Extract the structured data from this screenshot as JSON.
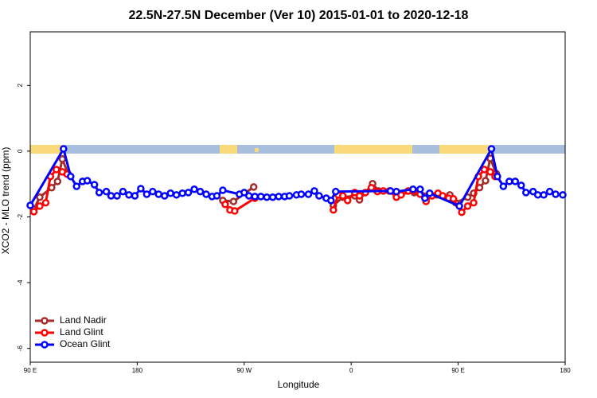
{
  "chart_data": {
    "type": "line",
    "title": "22.5N-27.5N December (Ver 10)   2015-01-01 to 2020-12-18",
    "x_label": "Longitude",
    "y_label": "XCO2 - MLO trend (ppm)",
    "xlim": [
      90,
      540
    ],
    "xticks": [
      {
        "value": 90,
        "label": "90 E"
      },
      {
        "value": 180,
        "label": "180"
      },
      {
        "value": 270,
        "label": "90 W"
      },
      {
        "value": 360,
        "label": "0"
      },
      {
        "value": 450,
        "label": "90 E"
      },
      {
        "value": 540,
        "label": "180"
      }
    ],
    "ylim": [
      -6.42,
      3.63
    ],
    "yticks": [
      -6,
      -4,
      -2,
      0,
      2
    ],
    "legend": "bottom-left",
    "series": [
      {
        "name": "Land Nadir",
        "color": "#a52a2a",
        "x": [
          93,
          98,
          108,
          113,
          117,
          122,
          null,
          252,
          261,
          278,
          null,
          345,
          353,
          363,
          367,
          378,
          383,
          398,
          413,
          432,
          443,
          448,
          458,
          463,
          468,
          473,
          477,
          482
        ],
        "values": [
          -1.77,
          -1.4,
          -1.11,
          -0.92,
          -0.24,
          -0.7,
          null,
          -1.5,
          -1.53,
          -1.09,
          null,
          -1.65,
          -1.4,
          -1.36,
          -1.48,
          -0.99,
          -1.21,
          -1.31,
          -1.26,
          -1.33,
          -1.33,
          -1.57,
          -1.4,
          -1.28,
          -1.11,
          -0.9,
          -0.22,
          -0.68
        ]
      },
      {
        "name": "Land Glint",
        "color": "#ff0000",
        "x": [
          93,
          98,
          103,
          107,
          112,
          117,
          121,
          null,
          254,
          258,
          262,
          279,
          null,
          345,
          349,
          353,
          357,
          363,
          367,
          372,
          377,
          382,
          387,
          392,
          398,
          402,
          408,
          412,
          418,
          423,
          428,
          433,
          437,
          442,
          446,
          453,
          458,
          463,
          467,
          472,
          477,
          481
        ],
        "values": [
          -1.84,
          -1.67,
          -1.57,
          -0.77,
          -0.56,
          -0.63,
          -0.7,
          null,
          -1.62,
          -1.79,
          -1.82,
          -1.43,
          null,
          -1.79,
          -1.33,
          -1.36,
          -1.5,
          -1.26,
          -1.36,
          -1.26,
          -1.11,
          -1.23,
          -1.21,
          -1.21,
          -1.4,
          -1.33,
          -1.21,
          -1.21,
          -1.31,
          -1.53,
          -1.36,
          -1.28,
          -1.36,
          -1.43,
          -1.45,
          -1.86,
          -1.67,
          -1.57,
          -0.77,
          -0.56,
          -0.63,
          -0.77
        ]
      },
      {
        "name": "Ocean Glint",
        "color": "#0000ff",
        "x": [
          90,
          118,
          124,
          129,
          134,
          138,
          144,
          148,
          154,
          158,
          163,
          168,
          173,
          178,
          183,
          188,
          193,
          198,
          203,
          208,
          213,
          218,
          223,
          228,
          233,
          238,
          243,
          247,
          252,
          266,
          270,
          274,
          279,
          284,
          289,
          294,
          299,
          304,
          308,
          314,
          318,
          324,
          329,
          333,
          339,
          343,
          347,
          393,
          398,
          412,
          418,
          422,
          426,
          451,
          478,
          483,
          488,
          493,
          498,
          503,
          507,
          513,
          517,
          522,
          527,
          532,
          538
        ],
        "values": [
          -1.65,
          0.07,
          -0.77,
          -1.07,
          -0.92,
          -0.9,
          -1.02,
          -1.26,
          -1.23,
          -1.36,
          -1.36,
          -1.23,
          -1.33,
          -1.36,
          -1.14,
          -1.31,
          -1.23,
          -1.31,
          -1.36,
          -1.28,
          -1.33,
          -1.28,
          -1.26,
          -1.16,
          -1.23,
          -1.31,
          -1.38,
          -1.36,
          -1.19,
          -1.31,
          -1.26,
          -1.36,
          -1.38,
          -1.38,
          -1.4,
          -1.4,
          -1.38,
          -1.38,
          -1.36,
          -1.33,
          -1.31,
          -1.31,
          -1.21,
          -1.36,
          -1.43,
          -1.5,
          -1.23,
          -1.21,
          -1.23,
          -1.16,
          -1.16,
          -1.43,
          -1.28,
          -1.67,
          0.07,
          -0.77,
          -1.07,
          -0.92,
          -0.92,
          -1.04,
          -1.26,
          -1.23,
          -1.33,
          -1.33,
          -1.23,
          -1.31,
          -1.33
        ]
      }
    ]
  }
}
